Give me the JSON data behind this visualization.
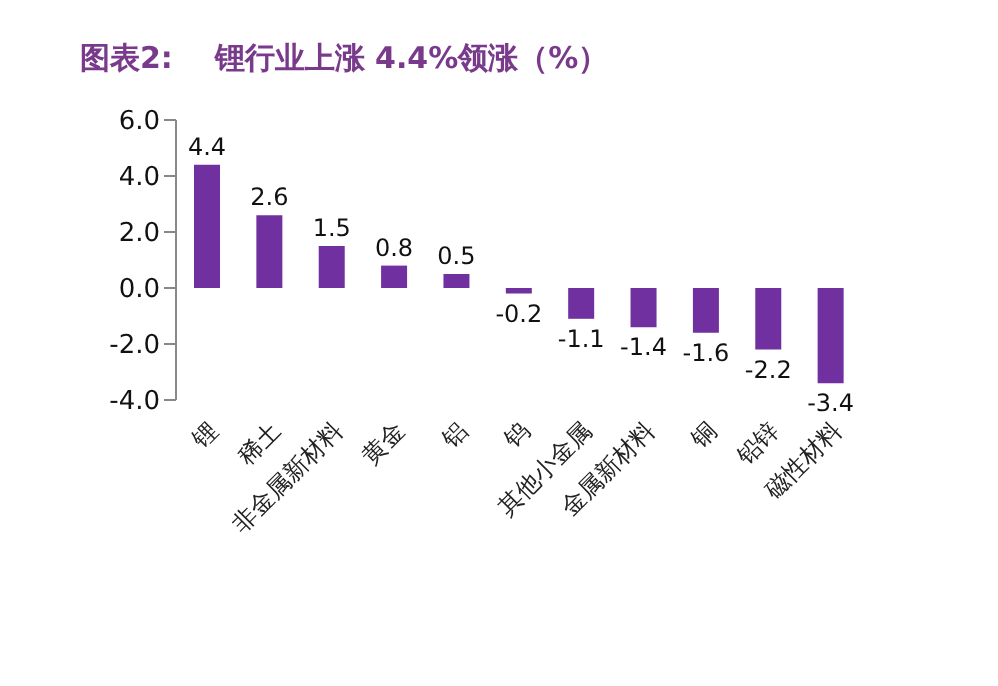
{
  "chart_data": {
    "type": "bar",
    "title": "图表2:    锂行业上涨 4.4%领涨（%）",
    "categories": [
      "锂",
      "稀土",
      "非金属新材料",
      "黄金",
      "铝",
      "钨",
      "其他小金属",
      "金属新材料",
      "铜",
      "铅锌",
      "磁性材料"
    ],
    "values": [
      4.4,
      2.6,
      1.5,
      0.8,
      0.5,
      -0.2,
      -1.1,
      -1.4,
      -1.6,
      -2.2,
      -3.4
    ],
    "color": "#7030a0",
    "ylim": [
      -4,
      6
    ],
    "yticks": [
      {
        "value": -4,
        "label": "-4.0"
      },
      {
        "value": -2,
        "label": "-2.0"
      },
      {
        "value": 0,
        "label": "0.0"
      },
      {
        "value": 2,
        "label": "2.0"
      },
      {
        "value": 4,
        "label": "4.0"
      },
      {
        "value": 6,
        "label": "6.0"
      }
    ],
    "data_labels": true,
    "grid": false,
    "legend": false
  }
}
